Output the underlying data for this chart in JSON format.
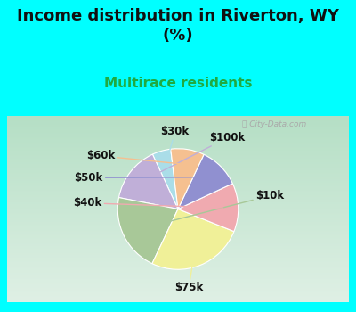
{
  "title": "Income distribution in Riverton, WY\n(%)",
  "subtitle": "Multirace residents",
  "labels": [
    "$30k",
    "$100k",
    "$10k",
    "$75k",
    "$40k",
    "$50k",
    "$60k"
  ],
  "values": [
    5.0,
    15.0,
    21.0,
    26.0,
    13.0,
    11.0,
    9.0
  ],
  "colors": [
    "#aadde8",
    "#c0afd8",
    "#a8c898",
    "#f0f098",
    "#f0aab0",
    "#9090d0",
    "#f5c090"
  ],
  "startangle": 97,
  "background_color": "#00ffff",
  "chart_bg_colors": [
    "#c8ead8",
    "#e8f5ec"
  ],
  "title_fontsize": 13,
  "subtitle_fontsize": 11,
  "subtitle_color": "#20aa40",
  "watermark": "City-Data.com",
  "label_fontsize": 8.5
}
